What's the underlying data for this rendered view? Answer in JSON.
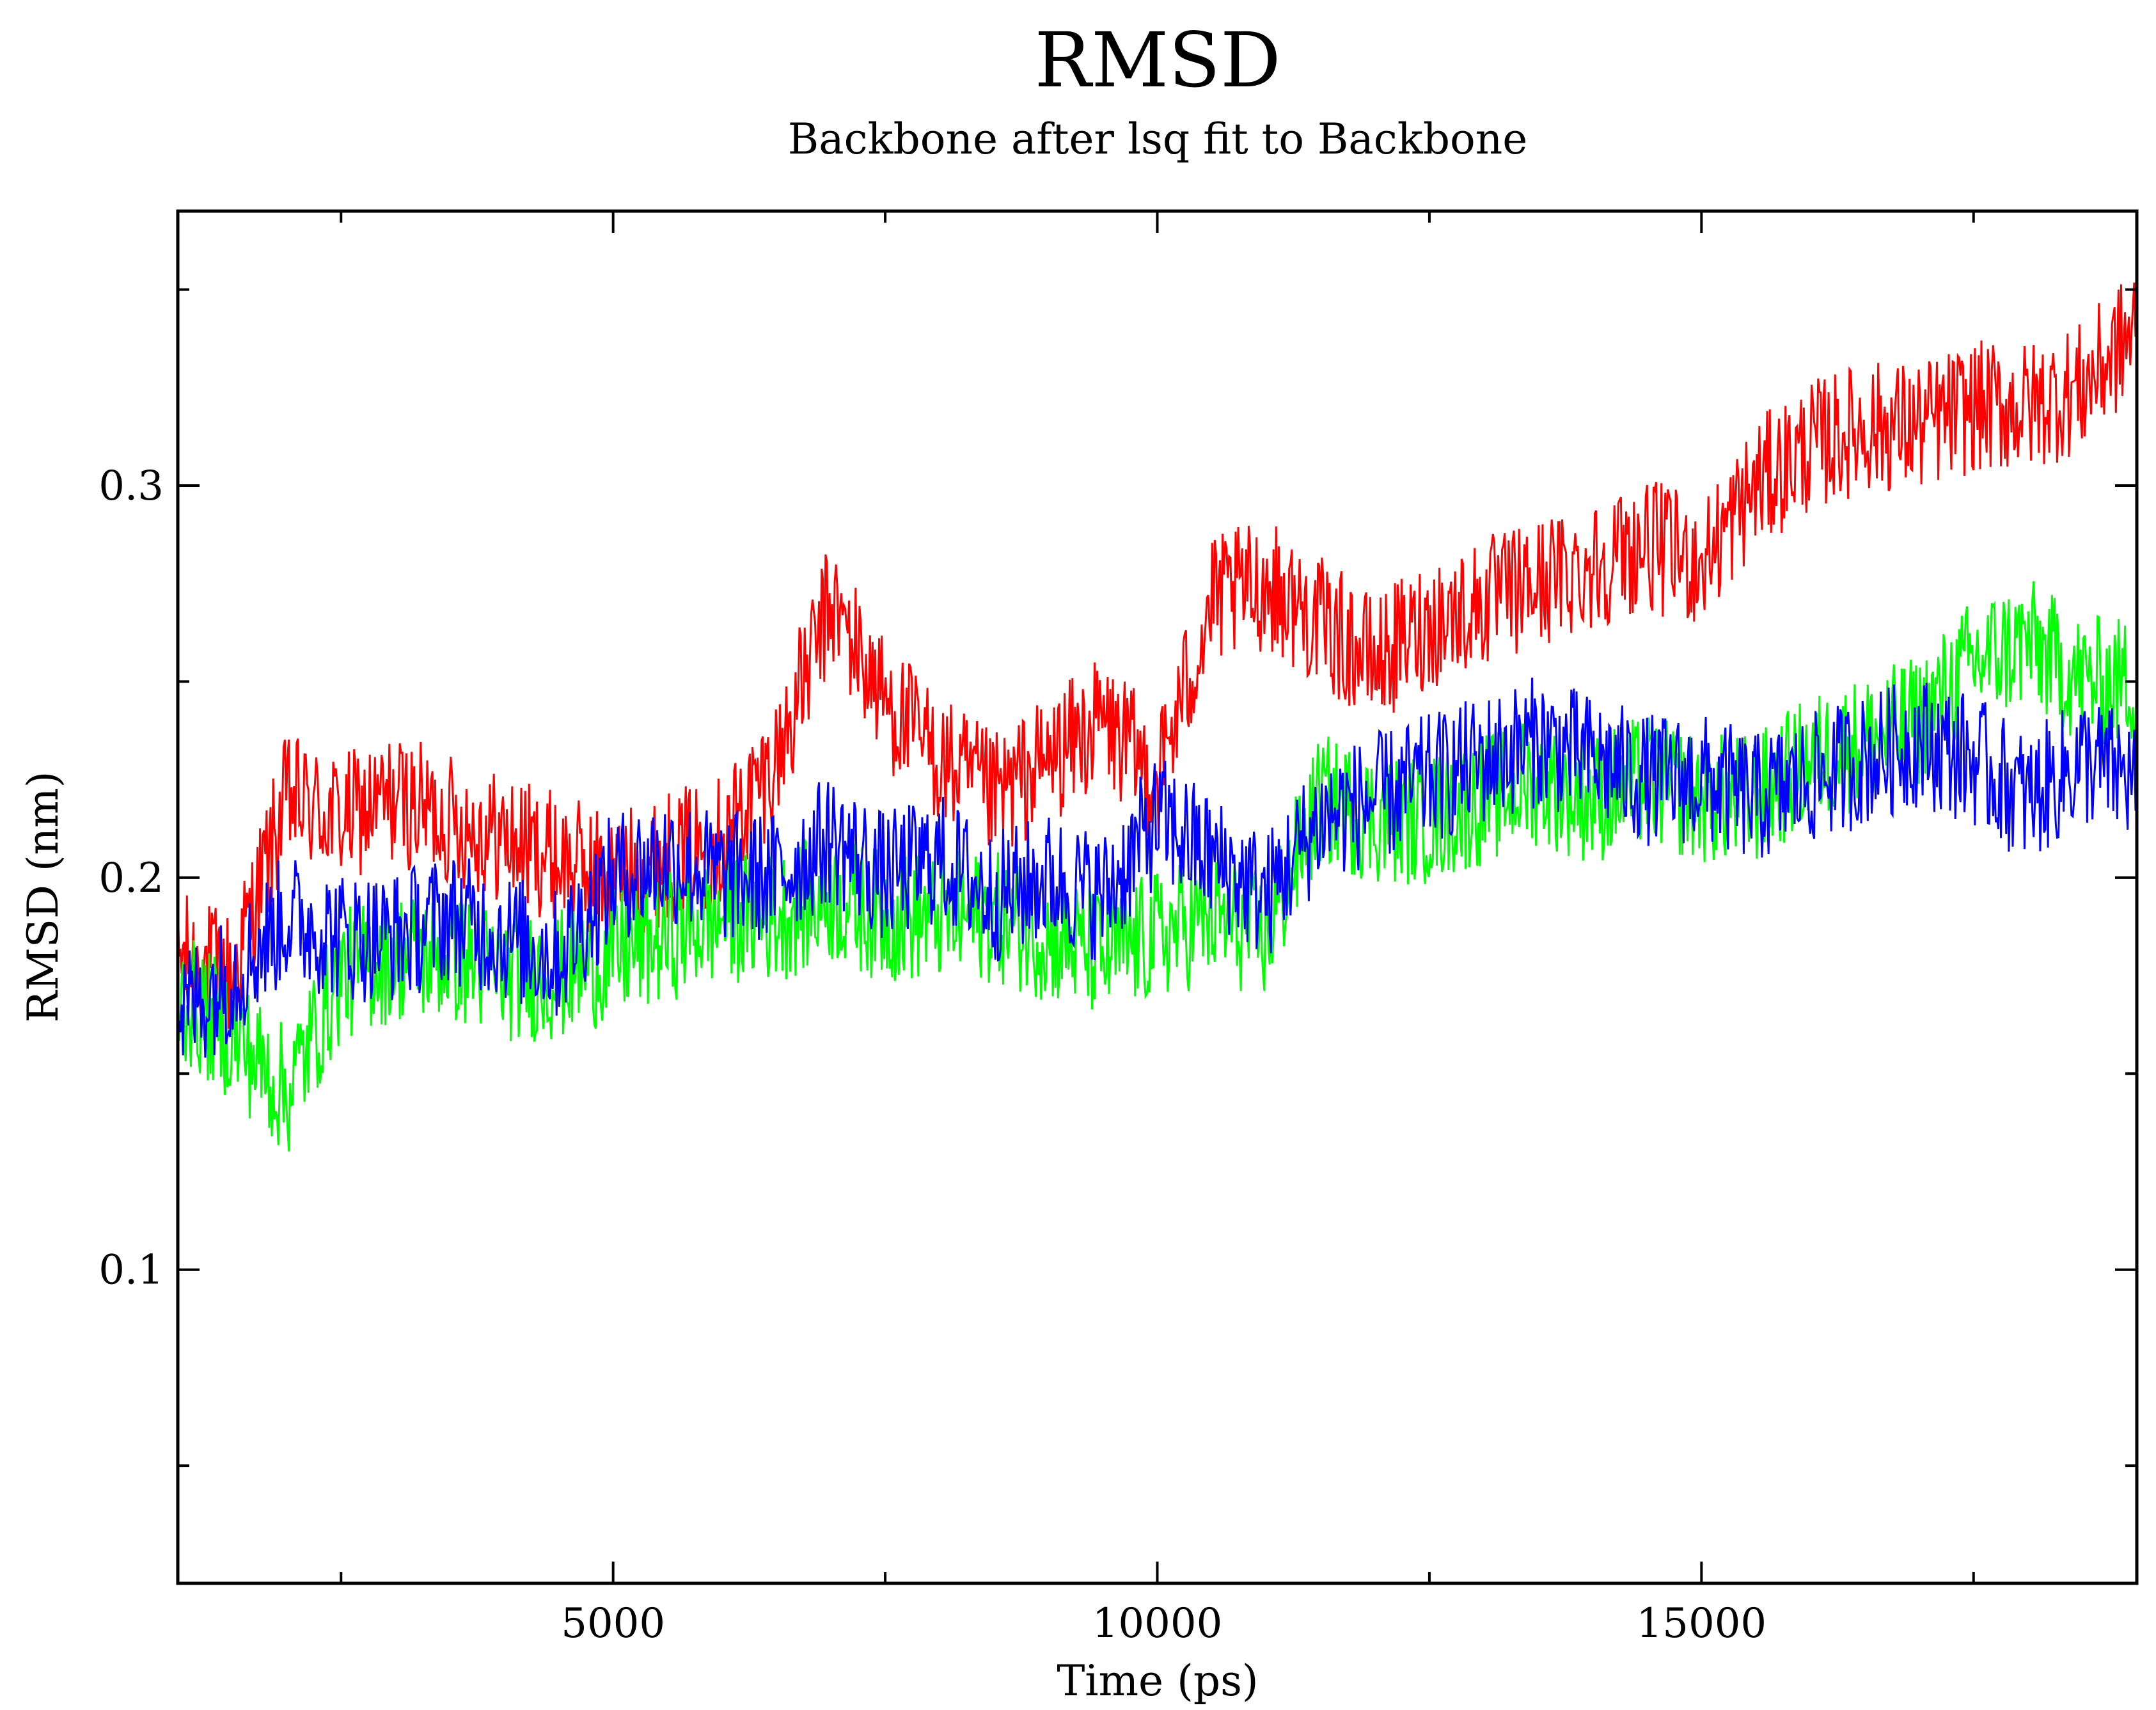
{
  "chart_data": {
    "type": "line",
    "title": "RMSD",
    "subtitle": "Backbone after lsq fit to Backbone",
    "xlabel": "Time (ps)",
    "ylabel": "RMSD (nm)",
    "xlim": [
      1000,
      19000
    ],
    "ylim": [
      0.02,
      0.37
    ],
    "x_major_ticks": [
      5000,
      10000,
      15000
    ],
    "x_tick_labels": [
      "5000",
      "10000",
      "15000"
    ],
    "x_minor_ticks": [
      2500,
      7500,
      12500,
      17500
    ],
    "y_major_ticks": [
      0.1,
      0.2,
      0.3
    ],
    "y_tick_labels": [
      "0.1",
      "0.2",
      "0.3"
    ],
    "y_minor_ticks": [
      0.05,
      0.15,
      0.25,
      0.35
    ],
    "grid": false,
    "legend": "none",
    "series": [
      {
        "color": "#ff0000",
        "x": [
          1000,
          1500,
          2000,
          2500,
          3000,
          3500,
          4000,
          4500,
          5000,
          5500,
          6000,
          6500,
          7000,
          7500,
          8000,
          8500,
          9000,
          9500,
          10000,
          10500,
          11000,
          11500,
          12000,
          12500,
          13000,
          13500,
          14000,
          14500,
          15000,
          15500,
          16000,
          16500,
          17000,
          17500,
          18000,
          18500,
          19000
        ],
        "y": [
          0.18,
          0.175,
          0.22,
          0.215,
          0.22,
          0.215,
          0.21,
          0.205,
          0.2,
          0.205,
          0.21,
          0.23,
          0.27,
          0.245,
          0.23,
          0.22,
          0.23,
          0.24,
          0.225,
          0.27,
          0.275,
          0.265,
          0.255,
          0.265,
          0.27,
          0.275,
          0.28,
          0.285,
          0.28,
          0.3,
          0.31,
          0.315,
          0.315,
          0.32,
          0.32,
          0.325,
          0.34
        ]
      },
      {
        "color": "#00ff00",
        "x": [
          1000,
          1500,
          2000,
          2500,
          3000,
          3500,
          4000,
          4500,
          5000,
          5500,
          6000,
          6500,
          7000,
          7500,
          8000,
          8500,
          9000,
          9500,
          10000,
          10500,
          11000,
          11500,
          12000,
          12500,
          13000,
          13500,
          14000,
          14500,
          15000,
          15500,
          16000,
          16500,
          17000,
          17500,
          18000,
          18500,
          19000
        ],
        "y": [
          0.17,
          0.16,
          0.145,
          0.175,
          0.18,
          0.18,
          0.175,
          0.175,
          0.18,
          0.185,
          0.19,
          0.19,
          0.195,
          0.19,
          0.19,
          0.19,
          0.185,
          0.18,
          0.185,
          0.19,
          0.185,
          0.22,
          0.215,
          0.215,
          0.22,
          0.225,
          0.22,
          0.225,
          0.22,
          0.22,
          0.23,
          0.235,
          0.24,
          0.255,
          0.26,
          0.25,
          0.25
        ]
      },
      {
        "color": "#0000ff",
        "x": [
          1000,
          1500,
          2000,
          2500,
          3000,
          3500,
          4000,
          4500,
          5000,
          5500,
          6000,
          6500,
          7000,
          7500,
          8000,
          8500,
          9000,
          9500,
          10000,
          10500,
          11000,
          11500,
          12000,
          12500,
          13000,
          13500,
          14000,
          14500,
          15000,
          15500,
          16000,
          16500,
          17000,
          17500,
          18000,
          18500,
          19000
        ],
        "y": [
          0.165,
          0.175,
          0.19,
          0.185,
          0.185,
          0.19,
          0.185,
          0.18,
          0.2,
          0.205,
          0.2,
          0.2,
          0.21,
          0.2,
          0.205,
          0.195,
          0.2,
          0.195,
          0.215,
          0.205,
          0.195,
          0.215,
          0.22,
          0.225,
          0.23,
          0.235,
          0.23,
          0.225,
          0.225,
          0.22,
          0.225,
          0.23,
          0.235,
          0.23,
          0.22,
          0.23,
          0.225
        ]
      }
    ]
  }
}
